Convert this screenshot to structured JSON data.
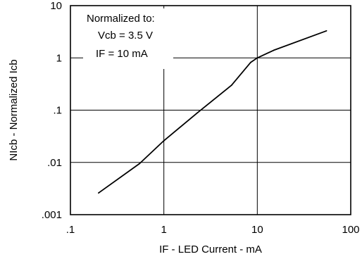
{
  "chart_data": {
    "type": "line",
    "xlabel": "IF - LED Current - mA",
    "ylabel": "NIcb - Normalized Icb",
    "x_scale": "log",
    "y_scale": "log",
    "xlim": [
      0.1,
      100
    ],
    "ylim": [
      0.001,
      10
    ],
    "x_ticks": [
      {
        "value": 0.1,
        "label": ".1"
      },
      {
        "value": 1,
        "label": "1"
      },
      {
        "value": 10,
        "label": "10"
      },
      {
        "value": 100,
        "label": "100"
      }
    ],
    "y_ticks": [
      {
        "value": 0.001,
        "label": ".001"
      },
      {
        "value": 0.01,
        "label": ".01"
      },
      {
        "value": 0.1,
        "label": ".1"
      },
      {
        "value": 1,
        "label": "1"
      },
      {
        "value": 10,
        "label": "10"
      }
    ],
    "grid": true,
    "annotation": [
      "Normalized to:",
      "Vcb = 3.5 V",
      "IF = 10 mA"
    ],
    "series": [
      {
        "x": [
          0.2,
          0.55,
          1.0,
          2.3,
          5.3,
          8.5,
          10,
          15,
          55
        ],
        "y": [
          0.0026,
          0.0095,
          0.026,
          0.09,
          0.3,
          0.82,
          1.0,
          1.4,
          3.3
        ]
      }
    ]
  }
}
